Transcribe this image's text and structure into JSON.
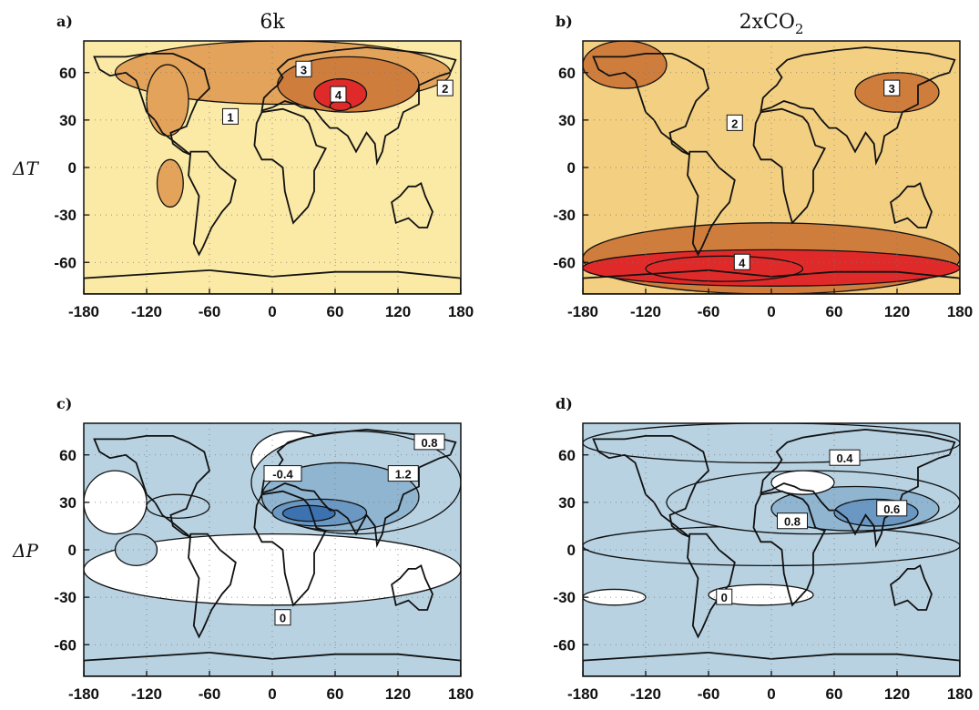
{
  "figure": {
    "row_labels": [
      "ΔT",
      "ΔP"
    ]
  },
  "chart_data": [
    {
      "type": "heatmap",
      "panel_label": "a)",
      "title": "6k",
      "row_label": "ΔT",
      "xlim": [
        -180,
        180
      ],
      "ylim": [
        -80,
        80
      ],
      "x_ticks": [
        "-180",
        "-120",
        "-60",
        "0",
        "60",
        "120",
        "180"
      ],
      "y_ticks": [
        "60",
        "30",
        "0",
        "-30",
        "-60"
      ],
      "palette": "warm",
      "background_color": "#fbe9a6",
      "contour_labels": [
        {
          "text": "3",
          "lon": 30,
          "lat": 62,
          "level": 3
        },
        {
          "text": "4",
          "lon": 63,
          "lat": 46,
          "level": 4
        },
        {
          "text": "2",
          "lon": 165,
          "lat": 50,
          "level": 2
        },
        {
          "text": "1",
          "lon": -40,
          "lat": 32,
          "level": 1
        }
      ],
      "regions": [
        {
          "level": 2,
          "lon": [
            -150,
            170
          ],
          "lat": [
            40,
            80
          ]
        },
        {
          "level": 2,
          "lon": [
            -120,
            -80
          ],
          "lat": [
            20,
            65
          ]
        },
        {
          "level": 3,
          "lon": [
            5,
            140
          ],
          "lat": [
            35,
            70
          ]
        },
        {
          "level": 4,
          "lon": [
            40,
            90
          ],
          "lat": [
            37,
            56
          ]
        },
        {
          "level": 5,
          "lon": [
            55,
            75
          ],
          "lat": [
            36,
            42
          ]
        },
        {
          "level": 2,
          "lon": [
            -110,
            -85
          ],
          "lat": [
            -25,
            5
          ]
        }
      ]
    },
    {
      "type": "heatmap",
      "panel_label": "b)",
      "title": "2xCO2",
      "row_label": "ΔT",
      "xlim": [
        -180,
        180
      ],
      "ylim": [
        -80,
        80
      ],
      "x_ticks": [
        "-180",
        "-120",
        "-60",
        "0",
        "60",
        "120",
        "180"
      ],
      "y_ticks": [
        "60",
        "30",
        "0",
        "-30",
        "-60"
      ],
      "palette": "warm",
      "background_color": "#f3cf82",
      "contour_labels": [
        {
          "text": "3",
          "lon": 115,
          "lat": 50,
          "level": 3
        },
        {
          "text": "2",
          "lon": -35,
          "lat": 28,
          "level": 2
        },
        {
          "text": "4",
          "lon": -28,
          "lat": -60,
          "level": 4
        }
      ],
      "regions": [
        {
          "level": 3,
          "lon": [
            -180,
            180
          ],
          "lat": [
            -80,
            -35
          ]
        },
        {
          "level": 4,
          "lon": [
            -180,
            180
          ],
          "lat": [
            -75,
            -52
          ]
        },
        {
          "level": 5,
          "lon": [
            -120,
            30
          ],
          "lat": [
            -72,
            -56
          ]
        },
        {
          "level": 3,
          "lon": [
            -180,
            -100
          ],
          "lat": [
            50,
            80
          ]
        },
        {
          "level": 3,
          "lon": [
            80,
            160
          ],
          "lat": [
            35,
            60
          ]
        }
      ]
    },
    {
      "type": "heatmap",
      "panel_label": "c)",
      "title": "",
      "row_label": "ΔP",
      "xlim": [
        -180,
        180
      ],
      "ylim": [
        -80,
        80
      ],
      "x_ticks": [
        "-180",
        "-120",
        "-60",
        "0",
        "60",
        "120",
        "180"
      ],
      "y_ticks": [
        "60",
        "30",
        "0",
        "-30",
        "-60"
      ],
      "palette": "cool",
      "background_color": "#b8d2e2",
      "contour_labels": [
        {
          "text": "0.8",
          "lon": 150,
          "lat": 68,
          "level": 1
        },
        {
          "text": "1.2",
          "lon": 125,
          "lat": 48,
          "level": 2
        },
        {
          "text": "-0.4",
          "lon": 10,
          "lat": 48,
          "level": 0
        },
        {
          "text": "0",
          "lon": 10,
          "lat": -43,
          "level": 0
        }
      ],
      "regions": [
        {
          "level": 0,
          "lon": [
            -180,
            180
          ],
          "lat": [
            -35,
            10
          ]
        },
        {
          "level": 0,
          "lon": [
            -180,
            -120
          ],
          "lat": [
            10,
            50
          ]
        },
        {
          "level": 0,
          "lon": [
            -20,
            60
          ],
          "lat": [
            40,
            75
          ]
        },
        {
          "level": 1,
          "lon": [
            -150,
            -110
          ],
          "lat": [
            -10,
            10
          ]
        },
        {
          "level": 1,
          "lon": [
            -120,
            -60
          ],
          "lat": [
            20,
            35
          ]
        },
        {
          "level": 1,
          "lon": [
            -20,
            180
          ],
          "lat": [
            10,
            75
          ]
        },
        {
          "level": 2,
          "lon": [
            -10,
            140
          ],
          "lat": [
            12,
            55
          ]
        },
        {
          "level": 3,
          "lon": [
            0,
            90
          ],
          "lat": [
            15,
            32
          ]
        },
        {
          "level": 4,
          "lon": [
            10,
            60
          ],
          "lat": [
            18,
            28
          ]
        }
      ]
    },
    {
      "type": "heatmap",
      "panel_label": "d)",
      "title": "",
      "row_label": "",
      "xlim": [
        -180,
        180
      ],
      "ylim": [
        -80,
        80
      ],
      "x_ticks": [
        "-180",
        "-120",
        "-60",
        "0",
        "60",
        "120",
        "180"
      ],
      "y_ticks": [
        "60",
        "30",
        "0",
        "-30",
        "-60"
      ],
      "palette": "cool",
      "background_color": "#b8d2e2",
      "contour_labels": [
        {
          "text": "0.4",
          "lon": 70,
          "lat": 58,
          "level": 1
        },
        {
          "text": "0.8",
          "lon": 20,
          "lat": 18,
          "level": 2
        },
        {
          "text": "0.6",
          "lon": 115,
          "lat": 26,
          "level": 2
        },
        {
          "text": "0",
          "lon": -45,
          "lat": -30,
          "level": 0
        }
      ],
      "regions": [
        {
          "level": 1,
          "lon": [
            -180,
            180
          ],
          "lat": [
            -10,
            15
          ]
        },
        {
          "level": 1,
          "lon": [
            -180,
            180
          ],
          "lat": [
            55,
            80
          ]
        },
        {
          "level": 1,
          "lon": [
            -100,
            180
          ],
          "lat": [
            10,
            50
          ]
        },
        {
          "level": 2,
          "lon": [
            0,
            160
          ],
          "lat": [
            12,
            40
          ]
        },
        {
          "level": 3,
          "lon": [
            60,
            140
          ],
          "lat": [
            15,
            32
          ]
        },
        {
          "level": 0,
          "lon": [
            -60,
            40
          ],
          "lat": [
            -35,
            -22
          ]
        },
        {
          "level": 0,
          "lon": [
            -180,
            -120
          ],
          "lat": [
            -35,
            -25
          ]
        },
        {
          "level": 0,
          "lon": [
            0,
            60
          ],
          "lat": [
            35,
            50
          ]
        }
      ]
    }
  ],
  "colors": {
    "warm": [
      "#fbe9a6",
      "#f3cf82",
      "#e3a35a",
      "#cf7d3c",
      "#e02a2a",
      "#e02a2a"
    ],
    "cool": [
      "#ffffff",
      "#b8d2e2",
      "#8fb5d1",
      "#6a98c3",
      "#3d72b0",
      "#1d4f98"
    ],
    "line": "#111111"
  }
}
